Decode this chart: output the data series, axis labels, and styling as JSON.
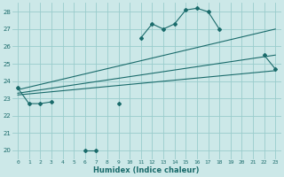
{
  "title": "",
  "xlabel": "Humidex (Indice chaleur)",
  "bg_color": "#cce8e8",
  "grid_color": "#99cccc",
  "line_color": "#1a6b6b",
  "xlim": [
    -0.5,
    23.5
  ],
  "ylim": [
    19.5,
    28.5
  ],
  "xticks": [
    0,
    1,
    2,
    3,
    4,
    5,
    6,
    7,
    8,
    9,
    10,
    11,
    12,
    13,
    14,
    15,
    16,
    17,
    18,
    19,
    20,
    21,
    22,
    23
  ],
  "yticks": [
    20,
    21,
    22,
    23,
    24,
    25,
    26,
    27,
    28
  ],
  "series0": {
    "x": [
      0,
      1,
      2,
      3,
      6,
      7,
      9,
      11,
      12,
      13,
      14,
      15,
      16,
      17,
      18,
      22,
      23
    ],
    "y": [
      23.6,
      22.7,
      22.7,
      22.8,
      20.0,
      20.0,
      22.7,
      26.5,
      27.3,
      27.0,
      27.3,
      28.1,
      28.2,
      28.0,
      27.0,
      25.5,
      24.7
    ]
  },
  "series0_segments": [
    {
      "x": [
        0,
        1,
        2,
        3
      ],
      "y": [
        23.6,
        22.7,
        22.7,
        22.8
      ]
    },
    {
      "x": [
        6,
        7
      ],
      "y": [
        20.0,
        20.0
      ]
    },
    {
      "x": [
        9
      ],
      "y": [
        22.7
      ]
    },
    {
      "x": [
        11,
        12,
        13,
        14,
        15,
        16,
        17,
        18
      ],
      "y": [
        26.5,
        27.3,
        27.0,
        27.3,
        28.1,
        28.2,
        28.0,
        27.0
      ]
    },
    {
      "x": [
        22,
        23
      ],
      "y": [
        25.5,
        24.7
      ]
    }
  ],
  "line1": {
    "x": [
      0,
      23
    ],
    "y": [
      23.5,
      27.0
    ]
  },
  "line2": {
    "x": [
      0,
      23
    ],
    "y": [
      23.3,
      25.5
    ]
  },
  "line3": {
    "x": [
      0,
      23
    ],
    "y": [
      23.2,
      24.6
    ]
  }
}
